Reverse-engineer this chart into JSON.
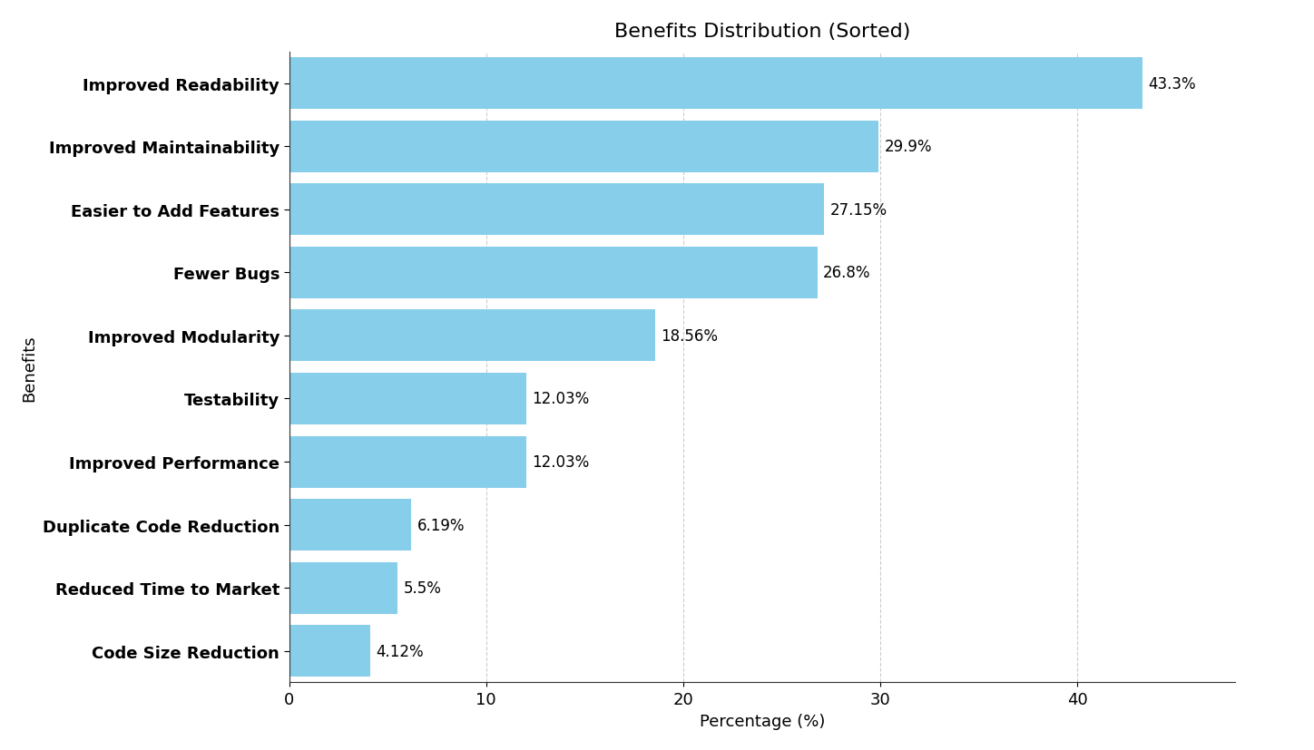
{
  "title": "Benefits Distribution (Sorted)",
  "xlabel": "Percentage (%)",
  "ylabel": "Benefits",
  "categories": [
    "Improved Readability",
    "Improved Maintainability",
    "Easier to Add Features",
    "Fewer Bugs",
    "Improved Modularity",
    "Testability",
    "Improved Performance",
    "Duplicate Code Reduction",
    "Reduced Time to Market",
    "Code Size Reduction"
  ],
  "values": [
    43.3,
    29.9,
    27.15,
    26.8,
    18.56,
    12.03,
    12.03,
    6.19,
    5.5,
    4.12
  ],
  "labels": [
    "43.3%",
    "29.9%",
    "27.15%",
    "26.8%",
    "18.56%",
    "12.03%",
    "12.03%",
    "6.19%",
    "5.5%",
    "4.12%"
  ],
  "bar_color": "#87CEEB",
  "background_color": "#ffffff",
  "grid_color": "#cccccc",
  "xlim": [
    0,
    48
  ],
  "bar_height": 0.82,
  "title_fontsize": 16,
  "label_fontsize": 13,
  "tick_fontsize": 13,
  "value_fontsize": 12
}
